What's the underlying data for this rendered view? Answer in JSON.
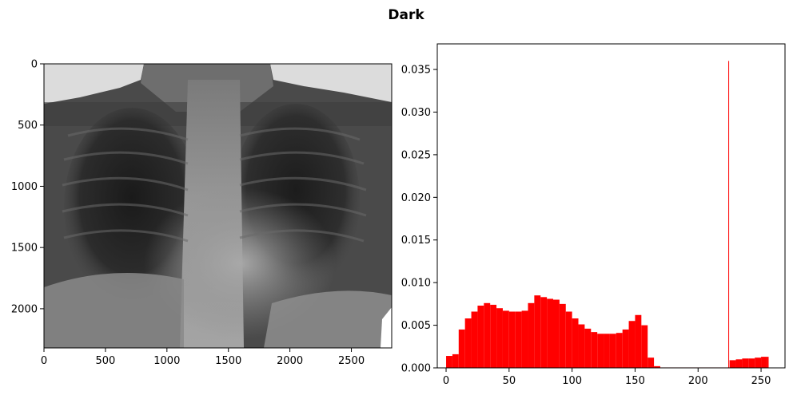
{
  "figure": {
    "title": "Dark"
  },
  "chart_data": [
    {
      "type": "image",
      "title": "",
      "description_colormap": "gray",
      "x_ticks": [
        "0",
        "500",
        "1000",
        "1500",
        "2000",
        "2500"
      ],
      "y_ticks": [
        "0",
        "500",
        "1000",
        "1500",
        "2000"
      ],
      "xlim": [
        0,
        2828
      ],
      "ylim": [
        2320,
        0
      ]
    },
    {
      "type": "histogram",
      "title": "",
      "xlabel": "",
      "ylabel": "",
      "bar_color": "#ff0000",
      "xlim": [
        -7,
        269
      ],
      "ylim": [
        0,
        0.038
      ],
      "x_ticks": [
        0,
        50,
        100,
        150,
        200,
        250
      ],
      "y_ticks": [
        "0.000",
        "0.005",
        "0.010",
        "0.015",
        "0.020",
        "0.025",
        "0.030",
        "0.035"
      ],
      "bins": [
        {
          "x": 0,
          "y": 0.0014
        },
        {
          "x": 5,
          "y": 0.0016
        },
        {
          "x": 10,
          "y": 0.0045
        },
        {
          "x": 15,
          "y": 0.0058
        },
        {
          "x": 20,
          "y": 0.0066
        },
        {
          "x": 25,
          "y": 0.0073
        },
        {
          "x": 30,
          "y": 0.0076
        },
        {
          "x": 35,
          "y": 0.0074
        },
        {
          "x": 40,
          "y": 0.007
        },
        {
          "x": 45,
          "y": 0.0067
        },
        {
          "x": 50,
          "y": 0.0066
        },
        {
          "x": 55,
          "y": 0.0066
        },
        {
          "x": 60,
          "y": 0.0067
        },
        {
          "x": 65,
          "y": 0.0076
        },
        {
          "x": 70,
          "y": 0.0085
        },
        {
          "x": 75,
          "y": 0.0083
        },
        {
          "x": 80,
          "y": 0.0081
        },
        {
          "x": 85,
          "y": 0.008
        },
        {
          "x": 90,
          "y": 0.0075
        },
        {
          "x": 95,
          "y": 0.0066
        },
        {
          "x": 100,
          "y": 0.0058
        },
        {
          "x": 105,
          "y": 0.0051
        },
        {
          "x": 110,
          "y": 0.0046
        },
        {
          "x": 115,
          "y": 0.0042
        },
        {
          "x": 120,
          "y": 0.004
        },
        {
          "x": 125,
          "y": 0.004
        },
        {
          "x": 130,
          "y": 0.004
        },
        {
          "x": 135,
          "y": 0.0041
        },
        {
          "x": 140,
          "y": 0.0045
        },
        {
          "x": 145,
          "y": 0.0055
        },
        {
          "x": 150,
          "y": 0.0062
        },
        {
          "x": 155,
          "y": 0.005
        },
        {
          "x": 160,
          "y": 0.0012
        },
        {
          "x": 165,
          "y": 0.0002
        },
        {
          "x": 170,
          "y": 5e-05
        },
        {
          "x": 224,
          "y": 0.036
        },
        {
          "x": 225,
          "y": 0.0009
        },
        {
          "x": 230,
          "y": 0.001
        },
        {
          "x": 235,
          "y": 0.0011
        },
        {
          "x": 240,
          "y": 0.0011
        },
        {
          "x": 245,
          "y": 0.0012
        },
        {
          "x": 250,
          "y": 0.0013
        },
        {
          "x": 255,
          "y": 0.0013
        }
      ]
    }
  ]
}
